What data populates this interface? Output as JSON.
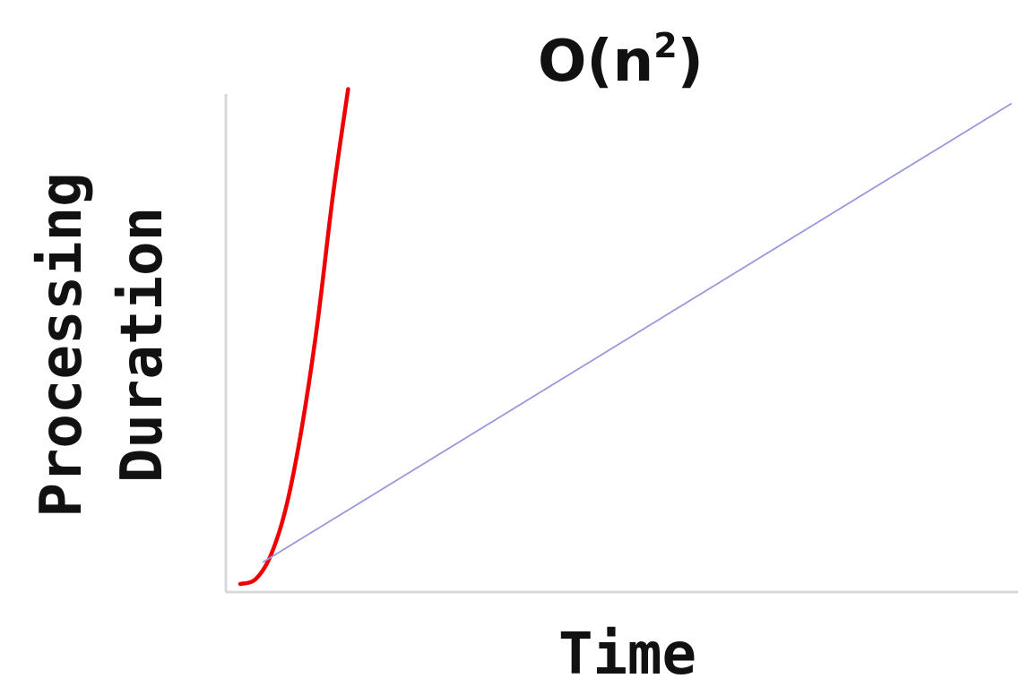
{
  "chart_data": {
    "type": "line",
    "title": {
      "base": "O(n",
      "superscript": "2",
      "close": ")"
    },
    "xlabel": "Time",
    "ylabel_lines": [
      "Processing",
      "Duration"
    ],
    "xlim": [
      0,
      10
    ],
    "ylim": [
      0,
      10
    ],
    "grid": false,
    "series": [
      {
        "color": "#ee0000",
        "x": [
          0.0,
          0.2,
          0.4,
          0.6,
          0.8,
          1.0,
          1.2,
          1.4
        ],
        "y": [
          0.0,
          0.1,
          0.6,
          1.6,
          3.2,
          5.3,
          7.9,
          10.1
        ]
      },
      {
        "color": "#9999dd",
        "x": [
          0.3,
          10.0
        ],
        "y": [
          0.45,
          9.8
        ]
      }
    ]
  },
  "colors": {
    "axis": "#d8d8d8",
    "text": "#111111"
  }
}
